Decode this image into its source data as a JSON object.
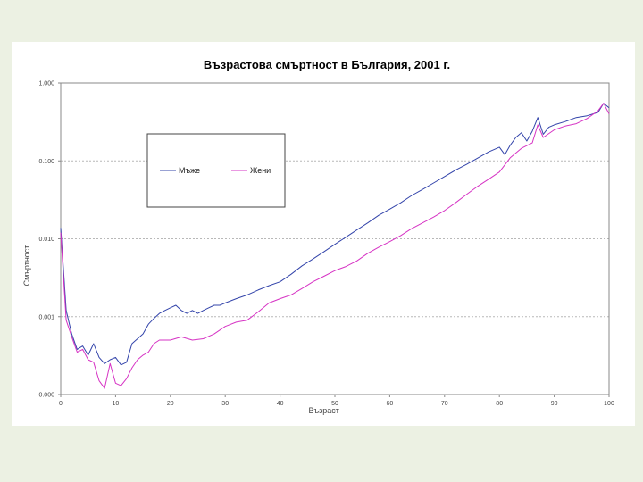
{
  "chart_data": {
    "type": "line",
    "title": "Възрастова смъртност в България, 2001 г.",
    "xlabel": "Възраст",
    "ylabel": "Смъртност",
    "y_scale": "log",
    "xlim": [
      0,
      100
    ],
    "ylim": [
      0.0001,
      1.0
    ],
    "grid": true,
    "legend_position": "top-left",
    "x_ticks": [
      0,
      10,
      20,
      30,
      40,
      50,
      60,
      70,
      80,
      90,
      100
    ],
    "x_tick_labels": [
      "0",
      "10",
      "20",
      "30",
      "40",
      "50",
      "60",
      "70",
      "80",
      "90",
      "100"
    ],
    "y_ticks": [
      0.0001,
      0.001,
      0.01,
      0.1,
      1.0
    ],
    "y_tick_labels": [
      "0.000",
      "0.001",
      "0.010",
      "0.100",
      "1.000"
    ],
    "series": [
      {
        "name": "Мъже",
        "color": "#3344aa",
        "x": [
          0,
          1,
          2,
          3,
          4,
          5,
          6,
          7,
          8,
          9,
          10,
          11,
          12,
          13,
          14,
          15,
          16,
          17,
          18,
          19,
          20,
          21,
          22,
          23,
          24,
          25,
          26,
          27,
          28,
          29,
          30,
          32,
          34,
          36,
          38,
          40,
          42,
          44,
          46,
          48,
          50,
          52,
          54,
          56,
          58,
          60,
          62,
          64,
          66,
          68,
          70,
          72,
          74,
          76,
          78,
          80,
          81,
          82,
          83,
          84,
          85,
          86,
          87,
          88,
          89,
          90,
          92,
          94,
          96,
          98,
          99,
          100
        ],
        "values": [
          0.0138,
          0.0012,
          0.0006,
          0.00038,
          0.00042,
          0.00032,
          0.00045,
          0.0003,
          0.00025,
          0.00028,
          0.0003,
          0.00024,
          0.00026,
          0.00045,
          0.00052,
          0.0006,
          0.0008,
          0.00095,
          0.0011,
          0.0012,
          0.0013,
          0.0014,
          0.0012,
          0.0011,
          0.0012,
          0.0011,
          0.0012,
          0.0013,
          0.0014,
          0.0014,
          0.0015,
          0.0017,
          0.0019,
          0.0022,
          0.0025,
          0.0028,
          0.0035,
          0.0045,
          0.0055,
          0.0068,
          0.0085,
          0.0105,
          0.013,
          0.016,
          0.02,
          0.024,
          0.029,
          0.036,
          0.043,
          0.052,
          0.063,
          0.076,
          0.09,
          0.108,
          0.13,
          0.15,
          0.12,
          0.16,
          0.2,
          0.23,
          0.18,
          0.24,
          0.36,
          0.22,
          0.27,
          0.29,
          0.32,
          0.36,
          0.38,
          0.42,
          0.55,
          0.48
        ]
      },
      {
        "name": "Жени",
        "color": "#d633c4",
        "x": [
          0,
          1,
          2,
          3,
          4,
          5,
          6,
          7,
          8,
          9,
          10,
          11,
          12,
          13,
          14,
          15,
          16,
          17,
          18,
          19,
          20,
          22,
          24,
          26,
          28,
          30,
          32,
          34,
          36,
          38,
          40,
          42,
          44,
          46,
          48,
          50,
          52,
          54,
          56,
          58,
          60,
          62,
          64,
          66,
          68,
          70,
          72,
          74,
          76,
          78,
          80,
          82,
          84,
          86,
          87,
          88,
          90,
          92,
          94,
          96,
          98,
          99,
          100
        ],
        "values": [
          0.012,
          0.0009,
          0.00055,
          0.00035,
          0.00038,
          0.00028,
          0.00026,
          0.00015,
          0.00012,
          0.00025,
          0.00014,
          0.00013,
          0.00016,
          0.00022,
          0.00028,
          0.00032,
          0.00035,
          0.00045,
          0.0005,
          0.0005,
          0.0005,
          0.00055,
          0.0005,
          0.00052,
          0.0006,
          0.00075,
          0.00085,
          0.0009,
          0.00115,
          0.0015,
          0.0017,
          0.0019,
          0.0023,
          0.0028,
          0.0033,
          0.0039,
          0.0044,
          0.0052,
          0.0065,
          0.0078,
          0.0092,
          0.011,
          0.0135,
          0.016,
          0.019,
          0.023,
          0.029,
          0.037,
          0.047,
          0.058,
          0.072,
          0.11,
          0.145,
          0.17,
          0.29,
          0.2,
          0.25,
          0.28,
          0.3,
          0.35,
          0.44,
          0.55,
          0.4
        ]
      }
    ]
  }
}
